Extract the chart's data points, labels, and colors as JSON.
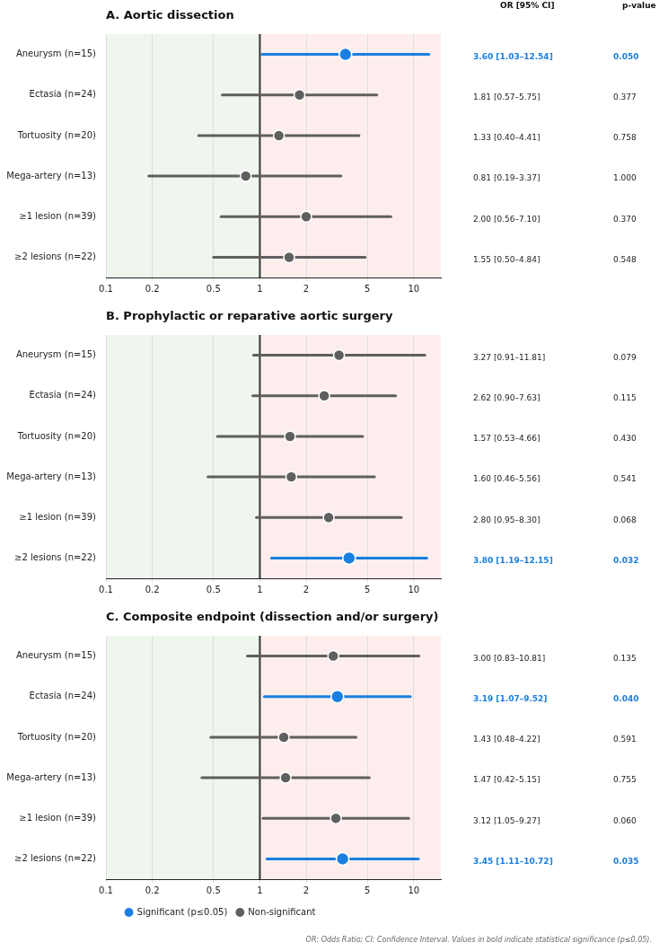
{
  "chart_data": [
    {
      "type": "scatter",
      "orientation": "horizontal",
      "title": "A. Aortic dissection",
      "categories": [
        "Aneurysm (n=15)",
        "Ectasia (n=24)",
        "Tortuosity (n=20)",
        "Mega-artery (n=13)",
        "≥1 lesion (n=39)",
        "≥2 lesions (n=22)"
      ],
      "series": [
        {
          "color": "#1a7fe0",
          "values": [
            3.6,
            null,
            null,
            null,
            null,
            null
          ],
          "errors": [
            [
              1.03,
              12.54
            ],
            null,
            null,
            null,
            null,
            null
          ]
        },
        {
          "color": "#5f5f5f",
          "values": [
            null,
            1.81,
            1.33,
            0.81,
            2.0,
            1.55
          ],
          "errors": [
            null,
            [
              0.57,
              5.75
            ],
            [
              0.4,
              4.41
            ],
            [
              0.19,
              3.37
            ],
            [
              0.56,
              7.1
            ],
            [
              0.5,
              4.84
            ]
          ]
        }
      ],
      "xlim": [
        0.1,
        15
      ],
      "xticks": [
        0.1,
        0.2,
        0.5,
        1,
        2,
        5,
        10
      ],
      "log": "x",
      "grid": "x",
      "marker": "circle",
      "bands": [
        {
          "axis": "x",
          "from": 0.1,
          "to": 1,
          "color": "#eef6ee"
        },
        {
          "axis": "x",
          "from": 1,
          "to": 15,
          "color": "#fdeeed"
        }
      ],
      "ref_lines": [
        {
          "axis": "x",
          "value": 1,
          "color": "#333333"
        }
      ],
      "annotations": [
        "OR [95% CI]",
        "p-value",
        "3.60 [1.03–12.54]",
        "0.050",
        "1.81 [0.57–5.75]",
        "0.377",
        "1.33 [0.40–4.41]",
        "0.758",
        "0.81 [0.19–3.37]",
        "1.000",
        "2.00 [0.56–7.10]",
        "0.370",
        "1.55 [0.50–4.84]",
        "0.548"
      ]
    },
    {
      "type": "scatter",
      "orientation": "horizontal",
      "title": "B. Prophylactic or reparative aortic surgery",
      "categories": [
        "Aneurysm (n=15)",
        "Ectasia (n=24)",
        "Tortuosity (n=20)",
        "Mega-artery (n=13)",
        "≥1 lesion (n=39)",
        "≥2 lesions (n=22)"
      ],
      "series": [
        {
          "color": "#1a7fe0",
          "values": [
            null,
            null,
            null,
            null,
            null,
            3.8
          ],
          "errors": [
            null,
            null,
            null,
            null,
            null,
            [
              1.19,
              12.15
            ]
          ]
        },
        {
          "color": "#5f5f5f",
          "values": [
            3.27,
            2.62,
            1.57,
            1.6,
            2.8,
            null
          ],
          "errors": [
            [
              0.91,
              11.81
            ],
            [
              0.9,
              7.63
            ],
            [
              0.53,
              4.66
            ],
            [
              0.46,
              5.56
            ],
            [
              0.95,
              8.3
            ],
            null
          ]
        }
      ],
      "xlim": [
        0.1,
        15
      ],
      "xticks": [
        0.1,
        0.2,
        0.5,
        1,
        2,
        5,
        10
      ],
      "log": "x",
      "grid": "x",
      "marker": "circle",
      "bands": [
        {
          "axis": "x",
          "from": 0.1,
          "to": 1,
          "color": "#eef6ee"
        },
        {
          "axis": "x",
          "from": 1,
          "to": 15,
          "color": "#fdeeed"
        }
      ],
      "ref_lines": [
        {
          "axis": "x",
          "value": 1,
          "color": "#333333"
        }
      ],
      "annotations": [
        "3.27 [0.91–11.81]",
        "0.079",
        "2.62 [0.90–7.63]",
        "0.115",
        "1.57 [0.53–4.66]",
        "0.430",
        "1.60 [0.46–5.56]",
        "0.541",
        "2.80 [0.95–8.30]",
        "0.068",
        "3.80 [1.19–12.15]",
        "0.032"
      ]
    },
    {
      "type": "scatter",
      "orientation": "horizontal",
      "title": "C. Composite endpoint (dissection and/or surgery)",
      "categories": [
        "Aneurysm (n=15)",
        "Ectasia (n=24)",
        "Tortuosity (n=20)",
        "Mega-artery (n=13)",
        "≥1 lesion (n=39)",
        "≥2 lesions (n=22)"
      ],
      "series": [
        {
          "name": "Significant (p≤0.05)",
          "color": "#1a7fe0",
          "values": [
            null,
            3.19,
            null,
            null,
            null,
            3.45
          ],
          "errors": [
            null,
            [
              1.07,
              9.52
            ],
            null,
            null,
            null,
            [
              1.11,
              10.72
            ]
          ]
        },
        {
          "name": "Non-significant",
          "color": "#5f5f5f",
          "values": [
            3.0,
            null,
            1.43,
            1.47,
            3.12,
            null
          ],
          "errors": [
            [
              0.83,
              10.81
            ],
            null,
            [
              0.48,
              4.22
            ],
            [
              0.42,
              5.15
            ],
            [
              1.05,
              9.27
            ],
            null
          ]
        }
      ],
      "xlim": [
        0.1,
        15
      ],
      "xticks": [
        0.1,
        0.2,
        0.5,
        1,
        2,
        5,
        10
      ],
      "log": "x",
      "grid": "x",
      "marker": "circle",
      "legend": "bottom",
      "bands": [
        {
          "axis": "x",
          "from": 0.1,
          "to": 1,
          "color": "#eef6ee"
        },
        {
          "axis": "x",
          "from": 1,
          "to": 15,
          "color": "#fdeeed"
        }
      ],
      "ref_lines": [
        {
          "axis": "x",
          "value": 1,
          "color": "#333333"
        }
      ],
      "annotations": [
        "OR: Odds Ratio; CI: Confidence Interval. Values in bold indicate statistical significance (p≤0.05).",
        "3.00 [0.83–10.81]",
        "0.135",
        "3.19 [1.07–9.52]",
        "0.040",
        "1.43 [0.48–4.22]",
        "0.591",
        "1.47 [0.42–5.15]",
        "0.755",
        "3.12 [1.05–9.27]",
        "0.060",
        "3.45 [1.11–10.72]",
        "0.035"
      ]
    }
  ]
}
